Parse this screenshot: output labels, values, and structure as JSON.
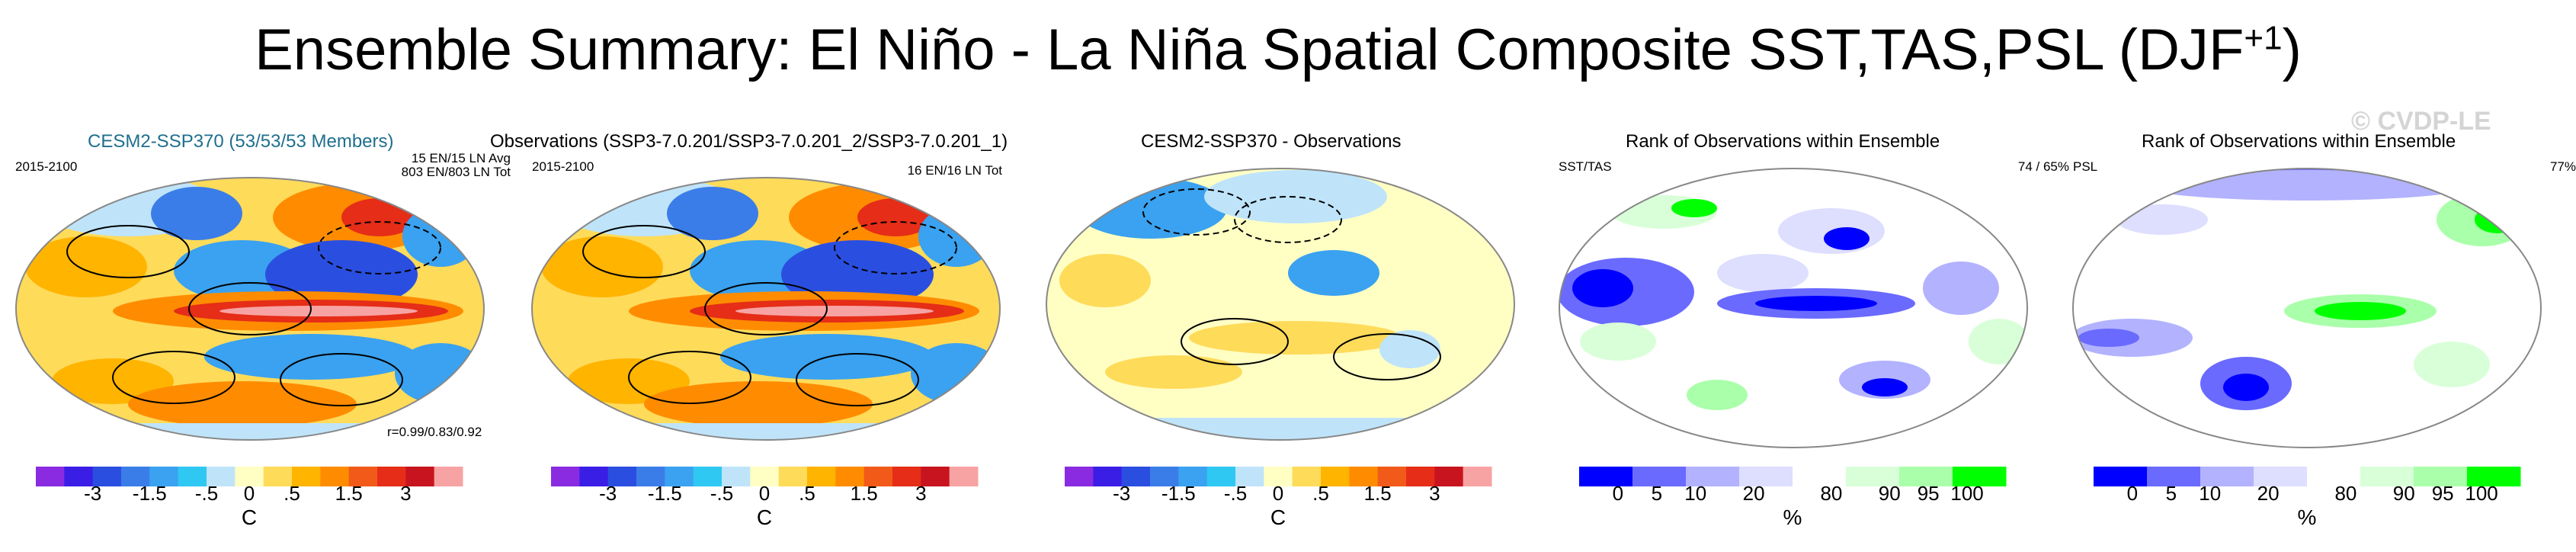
{
  "title": "Ensemble Summary: El Niño - La Niña Spatial Composite SST,TAS,PSL (DJF",
  "title_sup": "+1",
  "watermark": "© CVDP-LE",
  "panels": [
    {
      "title": "CESM2-SSP370 (53/53/53 Members)",
      "left": "2015-2100",
      "right": [
        "15 EN/15 LN Avg",
        "803 EN/803 LN Tot"
      ],
      "bottom": "r=0.99/0.83/0.92"
    },
    {
      "title": "Observations (SSP3-7.0.201/SSP3-7.0.201_2/SSP3-7.0.201_1)",
      "left": "2015-2100",
      "right": [
        "16 EN/16 LN Tot"
      ]
    },
    {
      "title": "CESM2-SSP370 - Observations"
    },
    {
      "title": "Rank of Observations within Ensemble",
      "left": "SST/TAS",
      "right": [
        "74 /  65%"
      ]
    },
    {
      "title": "Rank of Observations within Ensemble",
      "left": "PSL",
      "right": [
        "77%"
      ]
    }
  ],
  "colorbar_temp": {
    "unit": "C",
    "tick_labels": [
      "-3",
      "-1.5",
      "-.5",
      "0",
      ".5",
      "1.5",
      "3"
    ],
    "colors": [
      "#8a2be2",
      "#3a1ee6",
      "#2a4fe0",
      "#3b7de8",
      "#3aa2f0",
      "#2ec8f2",
      "#bfe4fa",
      "#ffffc4",
      "#ffdb5a",
      "#ffb400",
      "#ff8c00",
      "#f25a1a",
      "#e52d18",
      "#c8141e",
      "#f7a3a3"
    ]
  },
  "colorbar_rank": {
    "unit": "%",
    "tick_labels": [
      "0",
      "5",
      "10",
      "20",
      "80",
      "90",
      "95",
      "100"
    ],
    "colors": [
      "#0000ff",
      "#6a6aff",
      "#b2b2ff",
      "#dedeff",
      "#ffffff",
      "#d9ffd9",
      "#aaffaa",
      "#00ff00"
    ]
  }
}
